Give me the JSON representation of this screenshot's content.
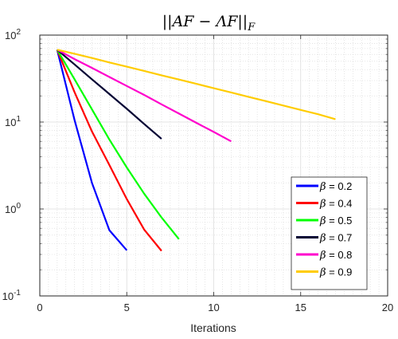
{
  "chart_data": {
    "type": "line",
    "title": "||AF − ΛF||",
    "title_subscript": "F",
    "xlabel": "Iterations",
    "ylabel": "",
    "xlim": [
      0,
      20
    ],
    "ylim": [
      0.1,
      100
    ],
    "yscale": "log",
    "grid": true,
    "minor_grid": true,
    "legend_position": "lower-right",
    "x_ticks": [
      "0",
      "5",
      "10",
      "15",
      "20"
    ],
    "y_ticks": [
      {
        "base": "10",
        "exp": "-1"
      },
      {
        "base": "10",
        "exp": "0"
      },
      {
        "base": "10",
        "exp": "1"
      },
      {
        "base": "10",
        "exp": "2"
      }
    ],
    "series": [
      {
        "symbol": "β",
        "name": " = 0.2",
        "color": "#0000ff",
        "x": [
          1,
          2,
          3,
          4,
          5
        ],
        "y": [
          68,
          10.5,
          2.0,
          0.57,
          0.335
        ]
      },
      {
        "symbol": "β",
        "name": " = 0.4",
        "color": "#ff0000",
        "x": [
          1,
          2,
          3,
          4,
          5,
          6,
          7
        ],
        "y": [
          68,
          22,
          7.8,
          3.2,
          1.3,
          0.58,
          0.33
        ]
      },
      {
        "symbol": "β",
        "name": " = 0.5",
        "color": "#00ff00",
        "x": [
          1,
          2,
          3,
          4,
          5,
          6,
          7,
          8
        ],
        "y": [
          68,
          31,
          14,
          6.3,
          3.0,
          1.5,
          0.8,
          0.45
        ]
      },
      {
        "symbol": "β",
        "name": " = 0.7",
        "color": "#000033",
        "x": [
          1,
          2,
          3,
          4,
          5,
          6,
          7
        ],
        "y": [
          68,
          46,
          31,
          21,
          14.2,
          9.5,
          6.4
        ]
      },
      {
        "symbol": "β",
        "name": " = 0.8",
        "color": "#ff00cc",
        "x": [
          1,
          2,
          3,
          4,
          5,
          6,
          7,
          8,
          9,
          10,
          11
        ],
        "y": [
          68,
          53,
          42,
          33,
          26,
          20.5,
          16,
          12.5,
          9.8,
          7.7,
          6.0
        ]
      },
      {
        "symbol": "β",
        "name": " = 0.9",
        "color": "#ffcc00",
        "x": [
          1,
          2,
          3,
          4,
          5,
          6,
          7,
          8,
          9,
          10,
          11,
          12,
          13,
          14,
          15,
          16,
          17
        ],
        "y": [
          68,
          61,
          54.5,
          48.5,
          43.3,
          38.7,
          34.5,
          30.8,
          27.5,
          24.5,
          21.9,
          19.5,
          17.4,
          15.5,
          13.8,
          12.3,
          10.8
        ]
      }
    ]
  }
}
